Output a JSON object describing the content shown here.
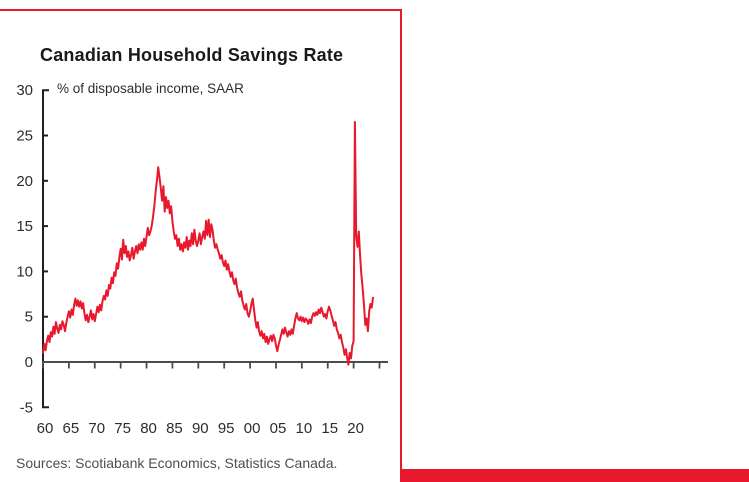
{
  "colors": {
    "accent_red": "#e8192c",
    "line_red": "#e8192c",
    "y_axis": "#231f20",
    "x_axis": "#4c4c4e",
    "tick_label": "#2d2d2f",
    "source_text": "#4f4f52",
    "background": "#ffffff"
  },
  "chart": {
    "title": "Canadian Household Savings Rate",
    "subtitle": "% of disposable income, SAAR",
    "source_note": "Sources: Scotiabank Economics, Statistics Canada."
  },
  "chart_data": {
    "type": "line",
    "title": "Canadian Household Savings Rate",
    "subtitle": "% of disposable income, SAAR",
    "ylabel": "% of disposable income, SAAR",
    "xlabel": "",
    "ylim": [
      -5,
      30
    ],
    "ytick_interval": 5,
    "yticks": [
      30,
      25,
      20,
      15,
      10,
      5,
      0,
      -5
    ],
    "xticks": [
      {
        "year": 1960,
        "label": "60"
      },
      {
        "year": 1965,
        "label": "65"
      },
      {
        "year": 1970,
        "label": "70"
      },
      {
        "year": 1975,
        "label": "75"
      },
      {
        "year": 1980,
        "label": "80"
      },
      {
        "year": 1985,
        "label": "85"
      },
      {
        "year": 1990,
        "label": "90"
      },
      {
        "year": 1995,
        "label": "95"
      },
      {
        "year": 2000,
        "label": "00"
      },
      {
        "year": 2005,
        "label": "05"
      },
      {
        "year": 2010,
        "label": "10"
      },
      {
        "year": 2015,
        "label": "15"
      },
      {
        "year": 2020,
        "label": "20"
      },
      {
        "year": 2025,
        "label": ""
      }
    ],
    "grid": false,
    "legend": "none",
    "line_color": "#e8192c",
    "series": [
      {
        "name": "Canadian household savings rate (% of disposable income, SAAR)",
        "start_year": 1960,
        "step_years": 0.25,
        "values": [
          1.0,
          2.0,
          1.3,
          2.3,
          2.9,
          2.2,
          3.3,
          2.8,
          3.9,
          3.1,
          4.4,
          3.7,
          3.2,
          4.1,
          3.6,
          4.5,
          4.1,
          3.4,
          4.3,
          5.0,
          5.6,
          4.9,
          5.8,
          5.2,
          6.3,
          7.0,
          6.2,
          6.8,
          6.1,
          6.7,
          5.9,
          6.5,
          5.4,
          4.6,
          5.2,
          4.4,
          5.0,
          5.7,
          4.7,
          5.3,
          4.5,
          5.3,
          6.1,
          5.5,
          6.3,
          5.7,
          6.7,
          7.3,
          6.9,
          7.9,
          7.3,
          8.5,
          8.1,
          9.3,
          8.7,
          9.9,
          9.5,
          10.9,
          10.3,
          11.6,
          12.5,
          11.3,
          13.5,
          12.0,
          12.8,
          11.6,
          12.2,
          11.2,
          11.8,
          12.6,
          11.4,
          12.2,
          12.8,
          12.0,
          13.0,
          12.4,
          13.2,
          12.4,
          13.6,
          12.8,
          13.8,
          14.8,
          14.0,
          14.4,
          15.0,
          16.0,
          17.2,
          18.8,
          20.0,
          21.5,
          20.4,
          19.2,
          17.8,
          19.4,
          16.6,
          18.2,
          17.0,
          17.8,
          16.4,
          17.2,
          15.6,
          14.4,
          13.6,
          14.0,
          12.8,
          13.6,
          12.4,
          13.0,
          12.2,
          13.2,
          12.6,
          13.8,
          12.4,
          13.4,
          12.8,
          14.2,
          13.0,
          14.6,
          13.4,
          12.8,
          13.4,
          14.2,
          13.0,
          13.8,
          14.4,
          13.6,
          15.6,
          14.0,
          15.7,
          13.8,
          15.2,
          14.6,
          13.4,
          12.6,
          13.0,
          12.4,
          12.0,
          11.4,
          11.8,
          11.0,
          10.6,
          11.2,
          10.2,
          10.8,
          10.0,
          9.4,
          9.9,
          9.0,
          8.6,
          9.2,
          8.2,
          7.6,
          7.2,
          7.8,
          6.8,
          6.2,
          5.8,
          6.4,
          5.4,
          5.0,
          5.6,
          6.4,
          7.0,
          5.8,
          4.6,
          3.8,
          4.4,
          3.4,
          2.9,
          3.4,
          2.6,
          3.1,
          2.2,
          2.8,
          2.0,
          2.5,
          2.9,
          2.3,
          3.0,
          2.6,
          1.8,
          1.2,
          1.9,
          2.4,
          3.0,
          3.6,
          3.1,
          3.8,
          3.3,
          2.8,
          3.4,
          3.0,
          3.6,
          3.1,
          4.0,
          4.8,
          5.4,
          4.8,
          4.6,
          5.0,
          4.5,
          4.9,
          4.4,
          4.8,
          4.6,
          4.2,
          4.7,
          4.3,
          5.0,
          5.4,
          5.1,
          5.5,
          5.2,
          5.8,
          5.4,
          6.0,
          5.5,
          5.0,
          5.3,
          4.8,
          5.6,
          6.1,
          5.7,
          5.1,
          4.6,
          4.0,
          4.4,
          3.6,
          3.2,
          2.6,
          3.0,
          2.2,
          1.6,
          0.8,
          1.4,
          0.5,
          -0.3,
          1.0,
          0.4,
          1.8,
          2.3,
          26.5,
          13.9,
          12.7,
          14.4,
          11.7,
          9.6,
          8.1,
          6.3,
          4.1,
          4.8,
          3.4,
          5.6,
          6.4,
          6.0,
          7.1
        ]
      }
    ]
  }
}
